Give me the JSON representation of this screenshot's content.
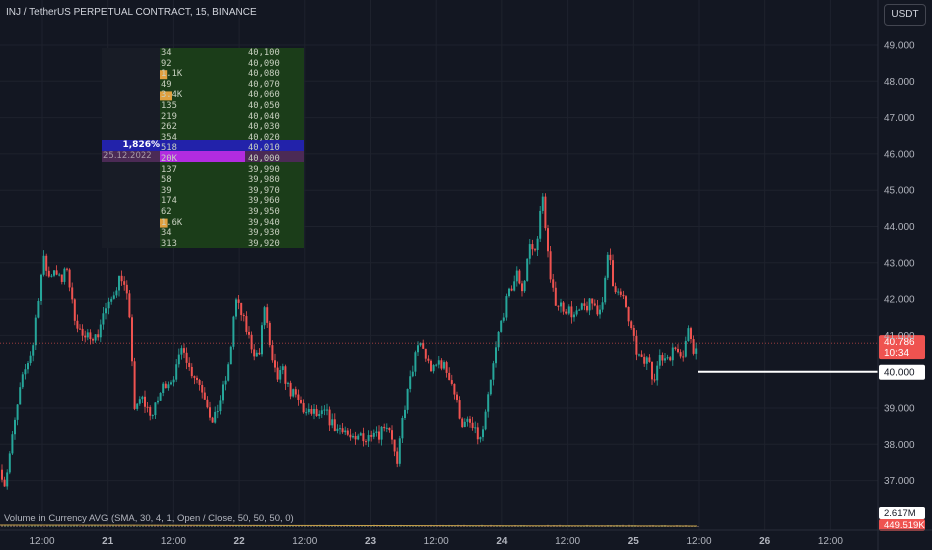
{
  "header": {
    "title": "INJ / TetherUS PERPETUAL CONTRACT, 15, BINANCE",
    "currency_button": "USDT"
  },
  "colors": {
    "background": "#131722",
    "up": "#26a69a",
    "down": "#ef5350",
    "grid": "#1e222d",
    "orderbook_bg": "#1b3d19",
    "orderbook_highlight_blue": "#2222aa",
    "orderbook_highlight_magenta": "#b22ce0",
    "orderbook_bar_orange": "#e0a040"
  },
  "chart_data": {
    "type": "candlestick",
    "title": "INJ / TetherUS PERPETUAL CONTRACT, 15, BINANCE",
    "y_axis": {
      "ticks": [
        "49.000",
        "48.000",
        "47.000",
        "46.000",
        "45.000",
        "44.000",
        "43.000",
        "42.000",
        "41.000",
        "39.000",
        "38.000",
        "37.000"
      ],
      "ylim": [
        36.6,
        49.4
      ]
    },
    "x_axis": {
      "ticks": [
        "12:00",
        "21",
        "12:00",
        "22",
        "12:00",
        "23",
        "12:00",
        "24",
        "12:00",
        "25",
        "12:00",
        "26",
        "12:00"
      ]
    },
    "price_path": [
      [
        0,
        37.3
      ],
      [
        4,
        36.9
      ],
      [
        8,
        37.6
      ],
      [
        14,
        38.6
      ],
      [
        20,
        39.6
      ],
      [
        26,
        40.2
      ],
      [
        32,
        40.7
      ],
      [
        36,
        41.8
      ],
      [
        42,
        43.1
      ],
      [
        48,
        42.6
      ],
      [
        54,
        42.9
      ],
      [
        60,
        42.4
      ],
      [
        66,
        42.9
      ],
      [
        72,
        41.7
      ],
      [
        78,
        41.2
      ],
      [
        84,
        40.8
      ],
      [
        90,
        41.1
      ],
      [
        96,
        40.9
      ],
      [
        102,
        41.6
      ],
      [
        108,
        41.8
      ],
      [
        114,
        42.3
      ],
      [
        120,
        42.7
      ],
      [
        126,
        42.0
      ],
      [
        130,
        40.9
      ],
      [
        134,
        38.8
      ],
      [
        140,
        39.3
      ],
      [
        146,
        39.0
      ],
      [
        152,
        38.8
      ],
      [
        158,
        39.3
      ],
      [
        164,
        39.7
      ],
      [
        170,
        39.8
      ],
      [
        176,
        40.1
      ],
      [
        182,
        40.8
      ],
      [
        188,
        40.1
      ],
      [
        194,
        39.9
      ],
      [
        200,
        39.6
      ],
      [
        206,
        39.2
      ],
      [
        212,
        38.5
      ],
      [
        218,
        39.1
      ],
      [
        224,
        39.7
      ],
      [
        228,
        40.2
      ],
      [
        234,
        42.0
      ],
      [
        240,
        41.6
      ],
      [
        246,
        41.1
      ],
      [
        252,
        40.6
      ],
      [
        258,
        40.4
      ],
      [
        264,
        41.9
      ],
      [
        270,
        40.3
      ],
      [
        276,
        39.8
      ],
      [
        282,
        40.0
      ],
      [
        288,
        39.5
      ],
      [
        294,
        39.3
      ],
      [
        300,
        39.1
      ],
      [
        306,
        38.8
      ],
      [
        312,
        38.9
      ],
      [
        318,
        38.7
      ],
      [
        324,
        38.9
      ],
      [
        330,
        38.6
      ],
      [
        336,
        38.4
      ],
      [
        342,
        38.5
      ],
      [
        348,
        38.2
      ],
      [
        354,
        38.0
      ],
      [
        360,
        38.3
      ],
      [
        366,
        38.1
      ],
      [
        372,
        38.5
      ],
      [
        378,
        38.3
      ],
      [
        384,
        38.6
      ],
      [
        390,
        38.4
      ],
      [
        396,
        37.3
      ],
      [
        402,
        38.8
      ],
      [
        408,
        39.6
      ],
      [
        414,
        40.4
      ],
      [
        420,
        40.8
      ],
      [
        426,
        40.3
      ],
      [
        432,
        40.0
      ],
      [
        438,
        40.3
      ],
      [
        444,
        40.1
      ],
      [
        450,
        39.8
      ],
      [
        456,
        39.1
      ],
      [
        462,
        38.5
      ],
      [
        468,
        38.6
      ],
      [
        474,
        38.3
      ],
      [
        480,
        38.1
      ],
      [
        486,
        39.0
      ],
      [
        492,
        40.1
      ],
      [
        498,
        41.1
      ],
      [
        504,
        41.8
      ],
      [
        510,
        42.3
      ],
      [
        516,
        42.7
      ],
      [
        522,
        42.2
      ],
      [
        528,
        43.5
      ],
      [
        534,
        43.3
      ],
      [
        538,
        44.1
      ],
      [
        542,
        44.8
      ],
      [
        546,
        43.6
      ],
      [
        550,
        42.3
      ],
      [
        556,
        41.9
      ],
      [
        562,
        41.8
      ],
      [
        568,
        41.7
      ],
      [
        574,
        41.5
      ],
      [
        580,
        41.7
      ],
      [
        586,
        41.8
      ],
      [
        592,
        41.9
      ],
      [
        598,
        41.6
      ],
      [
        604,
        42.4
      ],
      [
        608,
        43.4
      ],
      [
        612,
        42.5
      ],
      [
        618,
        42.1
      ],
      [
        624,
        41.9
      ],
      [
        630,
        41.1
      ],
      [
        636,
        40.5
      ],
      [
        642,
        40.2
      ],
      [
        648,
        40.4
      ],
      [
        652,
        39.8
      ],
      [
        658,
        40.3
      ],
      [
        664,
        40.4
      ],
      [
        670,
        40.5
      ],
      [
        676,
        40.7
      ],
      [
        682,
        40.5
      ],
      [
        688,
        41.2
      ],
      [
        694,
        40.5
      ],
      [
        698,
        40.786
      ]
    ],
    "last_price": {
      "value": 40.786,
      "label": "40.786",
      "countdown": "10:34"
    },
    "annotation_line": {
      "value": 40.0,
      "label": "40.000"
    },
    "volume": {
      "title": "Volume in Currency AVG (SMA, 30, 4, 1, Open / Close, 50, 50, 50, 0)",
      "labels": [
        "2.617M",
        "449.519K"
      ]
    }
  },
  "orderbook": {
    "rows": [
      {
        "qty": "34",
        "price": "40,100",
        "bar": 0
      },
      {
        "qty": "92",
        "price": "40,090",
        "bar": 0
      },
      {
        "qty": "1.1K",
        "price": "40,080",
        "bar": 0.4
      },
      {
        "qty": "49",
        "price": "40,070",
        "bar": 0
      },
      {
        "qty": "3.4K",
        "price": "40,060",
        "bar": 1
      },
      {
        "qty": "135",
        "price": "40,050",
        "bar": 0
      },
      {
        "qty": "219",
        "price": "40,040",
        "bar": 0
      },
      {
        "qty": "262",
        "price": "40,030",
        "bar": 0
      },
      {
        "qty": "354",
        "price": "40,020",
        "bar": 0
      },
      {
        "qty": "518",
        "price": "40,010",
        "bar": 0
      },
      {
        "qty": "20K",
        "price": "40,000",
        "bar": 0
      },
      {
        "qty": "137",
        "price": "39,990",
        "bar": 0
      },
      {
        "qty": "58",
        "price": "39,980",
        "bar": 0
      },
      {
        "qty": "39",
        "price": "39,970",
        "bar": 0
      },
      {
        "qty": "174",
        "price": "39,960",
        "bar": 0
      },
      {
        "qty": "62",
        "price": "39,950",
        "bar": 0
      },
      {
        "qty": "1.6K",
        "price": "39,940",
        "bar": 0.45
      },
      {
        "qty": "34",
        "price": "39,930",
        "bar": 0
      },
      {
        "qty": "313",
        "price": "39,920",
        "bar": 0
      }
    ],
    "highlight_pct_label": "1,826%",
    "highlight_date_label": "25.12.2022"
  }
}
